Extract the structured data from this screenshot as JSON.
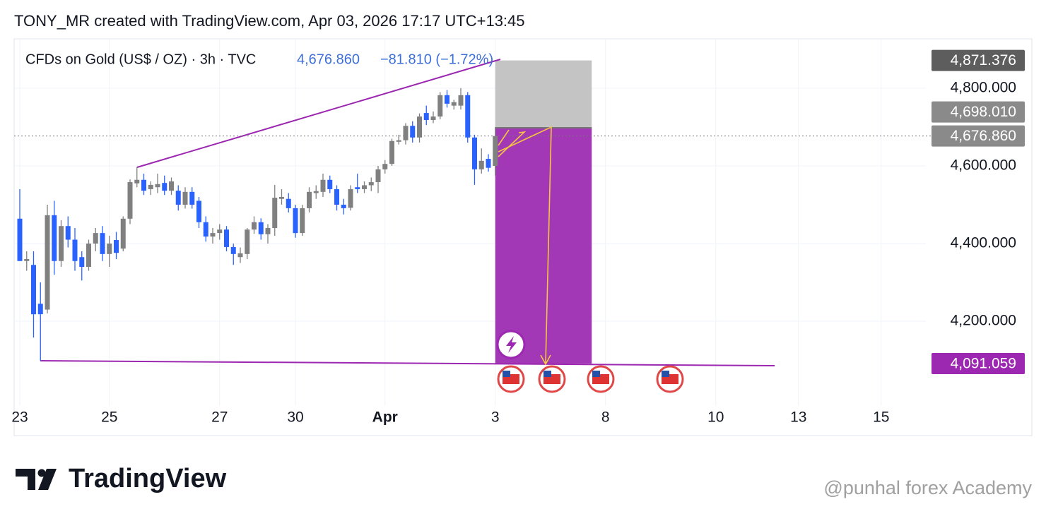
{
  "header": {
    "title": "TONY_MR created with TradingView.com, Apr 03, 2026 17:17 UTC+13:45"
  },
  "chart_data": {
    "type": "candlestick",
    "legend": {
      "symbol": "CFDs on Gold (US$ / OZ) · 3h · TVC",
      "price": "4,676.860",
      "change": "−81.810 (−1.72%)"
    },
    "categories": [
      "23",
      null,
      null,
      null,
      null,
      null,
      null,
      null,
      null,
      null,
      null,
      null,
      null,
      "25",
      null,
      null,
      null,
      null,
      null,
      null,
      null,
      null,
      null,
      null,
      null,
      null,
      null,
      null,
      null,
      "27",
      null,
      null,
      null,
      null,
      null,
      null,
      null,
      null,
      null,
      null,
      "30",
      null,
      null,
      null,
      null,
      null,
      null,
      null,
      null,
      null,
      null,
      null,
      null,
      "Apr",
      null,
      null,
      null,
      null,
      null,
      null,
      null,
      null,
      null,
      null,
      null,
      null,
      null,
      null,
      null,
      "3",
      null,
      null,
      null,
      null,
      null,
      null,
      null,
      null,
      null,
      null,
      null,
      null,
      null,
      null,
      null,
      "8",
      null,
      null,
      null,
      null,
      null,
      null,
      null,
      null,
      null,
      null,
      null,
      null,
      null,
      null,
      null,
      "10",
      null,
      null,
      null,
      null,
      null,
      null,
      null,
      null,
      null,
      null,
      null,
      "13",
      null,
      null,
      null,
      null,
      null,
      null,
      null,
      null,
      null,
      null,
      null,
      "15",
      null,
      null,
      null,
      null,
      null,
      null
    ],
    "open": [
      4464,
      4355,
      4345,
      4245,
      4230,
      4473,
      4355,
      4445,
      4410,
      4365,
      4340,
      4400,
      4427,
      4373,
      4409,
      4387,
      4464,
      4555,
      4564,
      4540,
      4545,
      4556,
      4536,
      4536,
      4500,
      4533,
      4510,
      4455,
      4418,
      4427,
      4436,
      4391,
      4365,
      4373,
      4436,
      4455,
      4424,
      4440,
      4515,
      4515,
      4491,
      4427,
      4491,
      4530,
      4533,
      4564,
      4540,
      4500,
      4492,
      4545,
      4540,
      4550,
      4558,
      4591,
      4605,
      4662,
      4666,
      4703,
      4673,
      4736,
      4718,
      4727,
      4782,
      4755,
      4755,
      4782,
      4673,
      4591,
      4618,
      4600,
      null,
      null,
      null,
      null,
      null,
      null,
      null,
      null,
      null,
      null,
      null,
      null,
      null,
      null,
      null,
      null,
      null,
      null,
      null,
      null,
      null,
      null,
      null,
      null,
      null,
      null,
      null,
      null,
      null,
      null,
      null,
      null,
      null,
      null,
      null,
      null,
      null,
      null,
      null,
      null,
      null,
      null,
      null,
      null,
      null,
      null,
      null,
      null,
      null,
      null,
      null,
      null,
      null,
      null,
      null,
      null,
      null,
      null,
      null,
      null,
      null,
      null
    ],
    "high": [
      4540,
      4380,
      4380,
      4300,
      4500,
      4510,
      4460,
      4470,
      4440,
      4380,
      4410,
      4440,
      4445,
      4420,
      4430,
      4470,
      4565,
      4597,
      4580,
      4560,
      4580,
      4575,
      4570,
      4550,
      4545,
      4545,
      4520,
      4470,
      4440,
      4450,
      4445,
      4400,
      4390,
      4440,
      4470,
      4465,
      4450,
      4551,
      4540,
      4530,
      4500,
      4500,
      4545,
      4550,
      4580,
      4575,
      4550,
      4515,
      4550,
      4580,
      4560,
      4570,
      4600,
      4615,
      4670,
      4680,
      4710,
      4715,
      4735,
      4755,
      4740,
      4790,
      4795,
      4770,
      4800,
      4790,
      4680,
      4645,
      4630,
      4700,
      null,
      null,
      null,
      null,
      null,
      null,
      null,
      null,
      null,
      null,
      null,
      null,
      null,
      null,
      null,
      null,
      null,
      null,
      null,
      null,
      null,
      null,
      null,
      null,
      null,
      null,
      null,
      null,
      null,
      null,
      null,
      null,
      null,
      null,
      null,
      null,
      null,
      null,
      null,
      null,
      null,
      null,
      null,
      null,
      null,
      null,
      null,
      null,
      null,
      null,
      null,
      null,
      null,
      null,
      null,
      null,
      null,
      null,
      null,
      null,
      null,
      null
    ],
    "low": [
      4355,
      4330,
      4158,
      4098,
      4220,
      4320,
      4340,
      4390,
      4330,
      4305,
      4330,
      4380,
      4355,
      4340,
      4360,
      4380,
      4450,
      4545,
      4525,
      4525,
      4530,
      4525,
      4525,
      4485,
      4490,
      4490,
      4440,
      4405,
      4400,
      4410,
      4380,
      4345,
      4350,
      4360,
      4425,
      4410,
      4400,
      4420,
      4500,
      4480,
      4415,
      4420,
      4480,
      4515,
      4520,
      4530,
      4485,
      4475,
      4485,
      4530,
      4530,
      4535,
      4530,
      4580,
      4600,
      4655,
      4655,
      4660,
      4660,
      4705,
      4710,
      4720,
      4750,
      4745,
      4745,
      4660,
      4551,
      4580,
      4585,
      4575,
      null,
      null,
      null,
      null,
      null,
      null,
      null,
      null,
      null,
      null,
      null,
      null,
      null,
      null,
      null,
      null,
      null,
      null,
      null,
      null,
      null,
      null,
      null,
      null,
      null,
      null,
      null,
      null,
      null,
      null,
      null,
      null,
      null,
      null,
      null,
      null,
      null,
      null,
      null,
      null,
      null,
      null,
      null,
      null,
      null,
      null,
      null,
      null,
      null,
      null,
      null,
      null,
      null,
      null,
      null,
      null,
      null,
      null,
      null,
      null,
      null,
      null
    ],
    "close": [
      4355,
      4360,
      4218,
      4218,
      4473,
      4355,
      4445,
      4410,
      4355,
      4340,
      4400,
      4427,
      4373,
      4400,
      4376,
      4464,
      4558,
      4564,
      4536,
      4551,
      4553,
      4536,
      4560,
      4500,
      4533,
      4500,
      4455,
      4418,
      4427,
      4436,
      4391,
      4373,
      4375,
      4436,
      4455,
      4424,
      4440,
      4518,
      4520,
      4491,
      4427,
      4491,
      4533,
      4535,
      4564,
      4540,
      4500,
      4491,
      4540,
      4540,
      4550,
      4558,
      4591,
      4605,
      4664,
      4666,
      4703,
      4673,
      4727,
      4718,
      4727,
      4782,
      4760,
      4764,
      4782,
      4673,
      4591,
      4613,
      4595,
      4676.86,
      null,
      null,
      null,
      null,
      null,
      null,
      null,
      null,
      null,
      null,
      null,
      null,
      null,
      null,
      null,
      null,
      null,
      null,
      null,
      null,
      null,
      null,
      null,
      null,
      null,
      null,
      null,
      null,
      null,
      null,
      null,
      null,
      null,
      null,
      null,
      null,
      null,
      null,
      null,
      null,
      null,
      null,
      null,
      null,
      null,
      null,
      null,
      null,
      null,
      null,
      null,
      null,
      null,
      null,
      null,
      null,
      null,
      null,
      null,
      null,
      null,
      null
    ],
    "up_color": "#808080",
    "down_color": "#2962ff",
    "ylim": [
      3982,
      4927
    ],
    "yticks": [
      {
        "value": 4200,
        "label": "4,200.000"
      },
      {
        "value": 4400,
        "label": "4,400.000"
      },
      {
        "value": 4600,
        "label": "4,600.000"
      },
      {
        "value": 4800,
        "label": "4,800.000"
      }
    ],
    "grid": true,
    "position": {
      "stop": {
        "value": 4871.376,
        "label": "4,871.376",
        "color": "#5d5d5d"
      },
      "entry": {
        "value": 4698.01,
        "label": "4,698.010",
        "color": "#8a8a8a"
      },
      "target": {
        "value": 4091.059,
        "label": "4,091.059",
        "color": "#9c27b0"
      }
    },
    "last_price": {
      "value": 4676.86,
      "label": "4,676.860",
      "color": "#8a8a8a"
    }
  },
  "footer": {
    "logo": "TradingView",
    "watermark": "@punhal forex Academy"
  }
}
